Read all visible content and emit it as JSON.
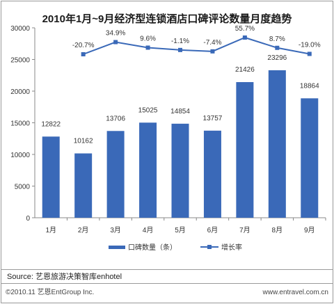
{
  "chart_data": {
    "type": "bar+line",
    "title": "2010年1月~9月经济型连锁酒店口碑评论数量月度趋势",
    "categories": [
      "1月",
      "2月",
      "3月",
      "4月",
      "5月",
      "6月",
      "7月",
      "8月",
      "9月"
    ],
    "series": [
      {
        "name": "口碑数量（条）",
        "type": "bar",
        "axis": "left",
        "values": [
          12822,
          10162,
          13706,
          15025,
          14854,
          13757,
          21426,
          23296,
          18864
        ],
        "labels": [
          "12822",
          "10162",
          "13706",
          "15025",
          "14854",
          "13757",
          "21426",
          "23296",
          "18864"
        ],
        "color": "#3a69b8"
      },
      {
        "name": "增长率",
        "type": "line",
        "axis": "left-unlabeled",
        "values": [
          null,
          -20.7,
          34.9,
          9.6,
          -1.1,
          -7.4,
          55.7,
          8.7,
          -19.0
        ],
        "labels": [
          "",
          "-20.7%",
          "34.9%",
          "9.6%",
          "-1.1%",
          "-7.4%",
          "55.7%",
          "8.7%",
          "-19.0%"
        ],
        "color": "#3a69b8"
      }
    ],
    "yticks": [
      "0",
      "5000",
      "10000",
      "15000",
      "20000",
      "25000",
      "30000"
    ],
    "ylim": [
      0,
      30000
    ],
    "grid": false,
    "legend": "bottom"
  },
  "footer": {
    "source": "Source: 艺恩旅游决策智库enhotel",
    "copyright": "©2010.11  艺恩EntGroup Inc.",
    "website": "www.entravel.com.cn"
  }
}
